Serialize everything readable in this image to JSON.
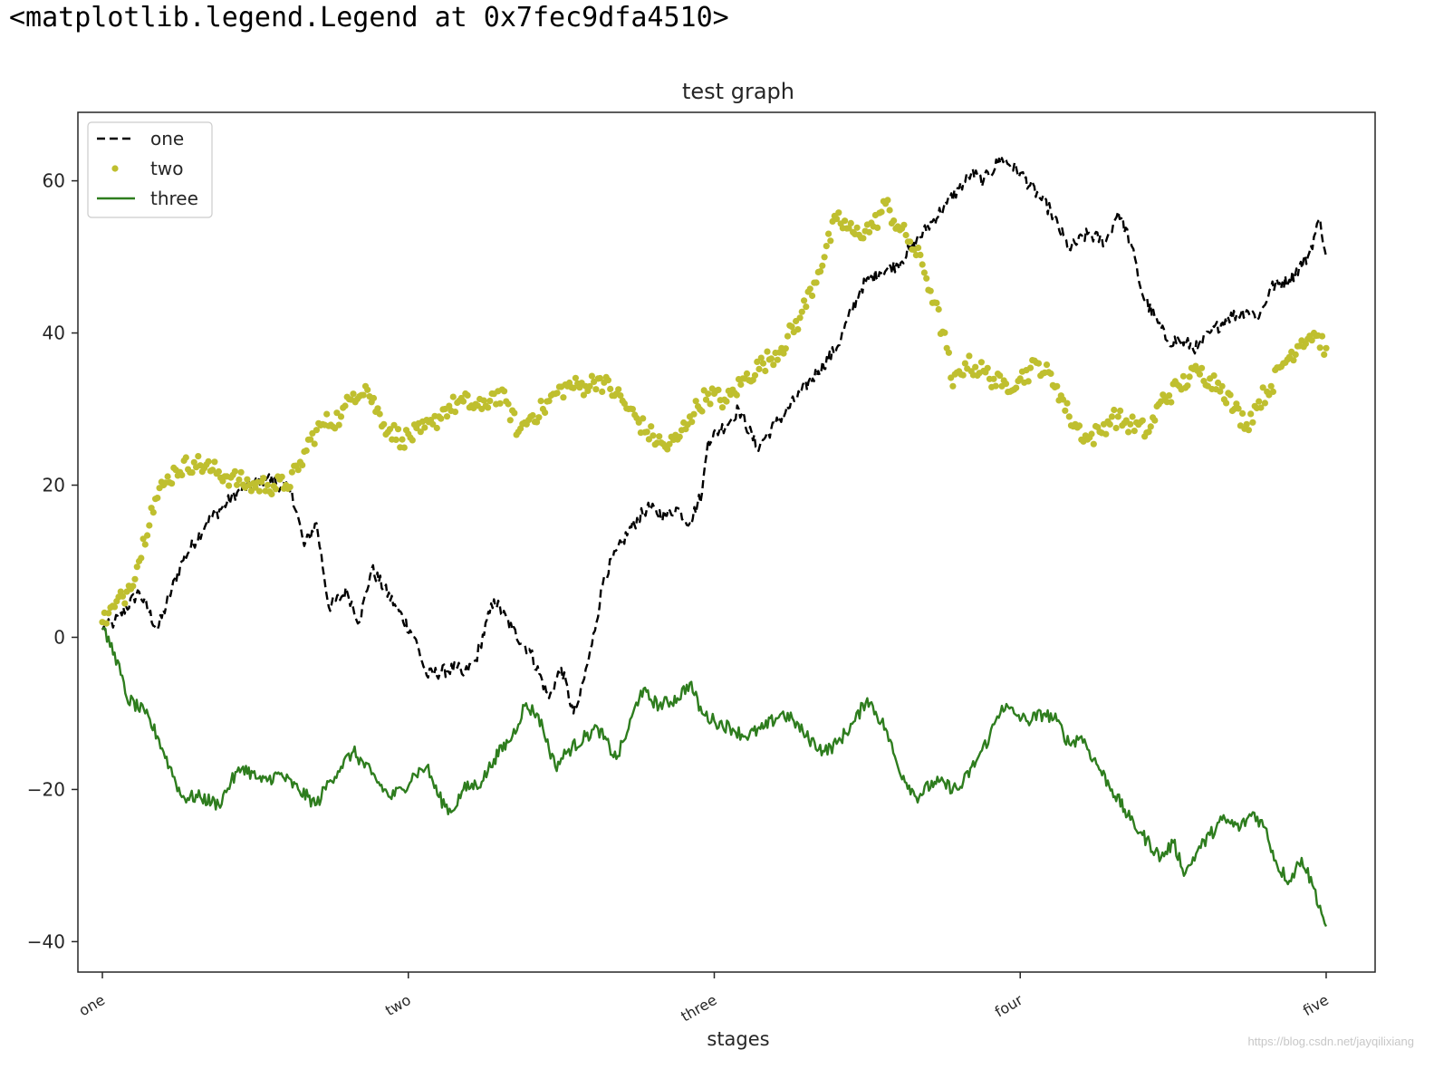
{
  "output_text": "<matplotlib.legend.Legend at 0x7fec9dfa4510>",
  "watermark": "https://blog.csdn.net/jayqilixiang",
  "chart_data": {
    "type": "line",
    "title": "test graph",
    "xlabel": "stages",
    "ylabel": "",
    "xlim": [
      -20,
      1040
    ],
    "ylim": [
      -44,
      69
    ],
    "x_ticks": [
      0,
      250,
      500,
      750,
      1000
    ],
    "x_tick_labels": [
      "one",
      "two",
      "three",
      "four",
      "five"
    ],
    "y_ticks": [
      -40,
      -20,
      0,
      20,
      40,
      60
    ],
    "y_tick_labels": [
      "−40",
      "−20",
      "0",
      "20",
      "40",
      "60"
    ],
    "grid": false,
    "legend": {
      "position": "upper left",
      "entries": [
        "one",
        "two",
        "three"
      ]
    },
    "series": [
      {
        "name": "one",
        "style": "dashed line",
        "color": "#000000",
        "points": [
          [
            0,
            1
          ],
          [
            10,
            2
          ],
          [
            30,
            6
          ],
          [
            45,
            1
          ],
          [
            65,
            10
          ],
          [
            85,
            15
          ],
          [
            110,
            19
          ],
          [
            135,
            21
          ],
          [
            155,
            19
          ],
          [
            165,
            12
          ],
          [
            175,
            15
          ],
          [
            185,
            4
          ],
          [
            200,
            6
          ],
          [
            210,
            2
          ],
          [
            220,
            9
          ],
          [
            240,
            4
          ],
          [
            255,
            0
          ],
          [
            265,
            -5
          ],
          [
            290,
            -4
          ],
          [
            295,
            -5
          ],
          [
            305,
            -3
          ],
          [
            320,
            5
          ],
          [
            335,
            1
          ],
          [
            350,
            -2
          ],
          [
            365,
            -8
          ],
          [
            375,
            -4
          ],
          [
            385,
            -10
          ],
          [
            390,
            -8
          ],
          [
            400,
            -1
          ],
          [
            410,
            8
          ],
          [
            430,
            14
          ],
          [
            445,
            17
          ],
          [
            460,
            16
          ],
          [
            470,
            17
          ],
          [
            480,
            15
          ],
          [
            490,
            19
          ],
          [
            495,
            26
          ],
          [
            510,
            28
          ],
          [
            520,
            30
          ],
          [
            535,
            25
          ],
          [
            550,
            28
          ],
          [
            570,
            32
          ],
          [
            585,
            35
          ],
          [
            600,
            38
          ],
          [
            620,
            46
          ],
          [
            635,
            48
          ],
          [
            650,
            49
          ],
          [
            665,
            52
          ],
          [
            690,
            57
          ],
          [
            700,
            59
          ],
          [
            710,
            61
          ],
          [
            720,
            60
          ],
          [
            735,
            63
          ],
          [
            750,
            61
          ],
          [
            765,
            58
          ],
          [
            775,
            56
          ],
          [
            790,
            51
          ],
          [
            805,
            53
          ],
          [
            820,
            52
          ],
          [
            830,
            56
          ],
          [
            840,
            52
          ],
          [
            850,
            45
          ],
          [
            860,
            42
          ],
          [
            870,
            39
          ],
          [
            880,
            39
          ],
          [
            895,
            38
          ],
          [
            905,
            40
          ],
          [
            920,
            42
          ],
          [
            935,
            43
          ],
          [
            945,
            42
          ],
          [
            955,
            46
          ],
          [
            970,
            47
          ],
          [
            985,
            50
          ],
          [
            995,
            55
          ],
          [
            1000,
            50
          ]
        ]
      },
      {
        "name": "two",
        "style": "dots",
        "color": "#bfbf2f",
        "points": [
          [
            0,
            2
          ],
          [
            10,
            4
          ],
          [
            20,
            6
          ],
          [
            30,
            10
          ],
          [
            40,
            17
          ],
          [
            50,
            20
          ],
          [
            60,
            22
          ],
          [
            75,
            23
          ],
          [
            90,
            22
          ],
          [
            105,
            21
          ],
          [
            120,
            20
          ],
          [
            135,
            20
          ],
          [
            150,
            20
          ],
          [
            160,
            22
          ],
          [
            170,
            26
          ],
          [
            180,
            28
          ],
          [
            195,
            29
          ],
          [
            205,
            32
          ],
          [
            215,
            33
          ],
          [
            230,
            28
          ],
          [
            245,
            26
          ],
          [
            260,
            27
          ],
          [
            270,
            28
          ],
          [
            280,
            30
          ],
          [
            295,
            31
          ],
          [
            310,
            30
          ],
          [
            320,
            32
          ],
          [
            330,
            31
          ],
          [
            340,
            27
          ],
          [
            350,
            29
          ],
          [
            360,
            30
          ],
          [
            370,
            32
          ],
          [
            380,
            33
          ],
          [
            395,
            33
          ],
          [
            405,
            34
          ],
          [
            420,
            32
          ],
          [
            430,
            30
          ],
          [
            445,
            27
          ],
          [
            460,
            25
          ],
          [
            470,
            26
          ],
          [
            480,
            29
          ],
          [
            495,
            32
          ],
          [
            510,
            31
          ],
          [
            525,
            34
          ],
          [
            540,
            36
          ],
          [
            555,
            38
          ],
          [
            570,
            42
          ],
          [
            585,
            48
          ],
          [
            600,
            55
          ],
          [
            615,
            53
          ],
          [
            630,
            54
          ],
          [
            640,
            57
          ],
          [
            650,
            54
          ],
          [
            660,
            52
          ],
          [
            670,
            49
          ],
          [
            680,
            44
          ],
          [
            690,
            38
          ],
          [
            695,
            33
          ],
          [
            705,
            36
          ],
          [
            720,
            35
          ],
          [
            735,
            33
          ],
          [
            750,
            34
          ],
          [
            765,
            36
          ],
          [
            780,
            33
          ],
          [
            790,
            29
          ],
          [
            805,
            26
          ],
          [
            815,
            27
          ],
          [
            825,
            29
          ],
          [
            840,
            28
          ],
          [
            855,
            27
          ],
          [
            865,
            31
          ],
          [
            880,
            33
          ],
          [
            895,
            35
          ],
          [
            905,
            34
          ],
          [
            915,
            33
          ],
          [
            925,
            30
          ],
          [
            935,
            28
          ],
          [
            945,
            31
          ],
          [
            955,
            33
          ],
          [
            965,
            36
          ],
          [
            980,
            39
          ],
          [
            990,
            40
          ],
          [
            1000,
            38
          ]
        ]
      },
      {
        "name": "three",
        "style": "solid line",
        "color": "#2e7d1e",
        "points": [
          [
            0,
            1
          ],
          [
            10,
            -2
          ],
          [
            20,
            -8
          ],
          [
            35,
            -10
          ],
          [
            45,
            -13
          ],
          [
            55,
            -17
          ],
          [
            65,
            -21
          ],
          [
            80,
            -21
          ],
          [
            95,
            -22
          ],
          [
            105,
            -19
          ],
          [
            115,
            -17
          ],
          [
            130,
            -19
          ],
          [
            145,
            -18
          ],
          [
            160,
            -20
          ],
          [
            175,
            -22
          ],
          [
            185,
            -19
          ],
          [
            195,
            -17
          ],
          [
            205,
            -15
          ],
          [
            220,
            -18
          ],
          [
            235,
            -21
          ],
          [
            245,
            -20
          ],
          [
            255,
            -18
          ],
          [
            265,
            -17
          ],
          [
            275,
            -21
          ],
          [
            285,
            -23
          ],
          [
            295,
            -20
          ],
          [
            310,
            -19
          ],
          [
            320,
            -16
          ],
          [
            335,
            -13
          ],
          [
            345,
            -9
          ],
          [
            355,
            -10
          ],
          [
            360,
            -12
          ],
          [
            370,
            -17
          ],
          [
            380,
            -15
          ],
          [
            395,
            -13
          ],
          [
            405,
            -12
          ],
          [
            420,
            -16
          ],
          [
            430,
            -12
          ],
          [
            440,
            -7
          ],
          [
            455,
            -9
          ],
          [
            470,
            -8
          ],
          [
            480,
            -6
          ],
          [
            490,
            -10
          ],
          [
            500,
            -11
          ],
          [
            515,
            -12
          ],
          [
            525,
            -13
          ],
          [
            540,
            -12
          ],
          [
            555,
            -10
          ],
          [
            565,
            -11
          ],
          [
            575,
            -13
          ],
          [
            590,
            -15
          ],
          [
            600,
            -14
          ],
          [
            615,
            -11
          ],
          [
            625,
            -8
          ],
          [
            640,
            -12
          ],
          [
            650,
            -17
          ],
          [
            665,
            -21
          ],
          [
            680,
            -19
          ],
          [
            700,
            -20
          ],
          [
            715,
            -16
          ],
          [
            725,
            -13
          ],
          [
            735,
            -9
          ],
          [
            745,
            -10
          ],
          [
            755,
            -11
          ],
          [
            770,
            -10
          ],
          [
            780,
            -11
          ],
          [
            790,
            -14
          ],
          [
            800,
            -13
          ],
          [
            810,
            -16
          ],
          [
            825,
            -20
          ],
          [
            840,
            -24
          ],
          [
            850,
            -26
          ],
          [
            865,
            -29
          ],
          [
            875,
            -27
          ],
          [
            885,
            -31
          ],
          [
            895,
            -28
          ],
          [
            905,
            -26
          ],
          [
            915,
            -24
          ],
          [
            930,
            -25
          ],
          [
            940,
            -23
          ],
          [
            950,
            -25
          ],
          [
            960,
            -30
          ],
          [
            970,
            -32
          ],
          [
            980,
            -29
          ],
          [
            990,
            -33
          ],
          [
            1000,
            -38
          ]
        ]
      }
    ]
  }
}
